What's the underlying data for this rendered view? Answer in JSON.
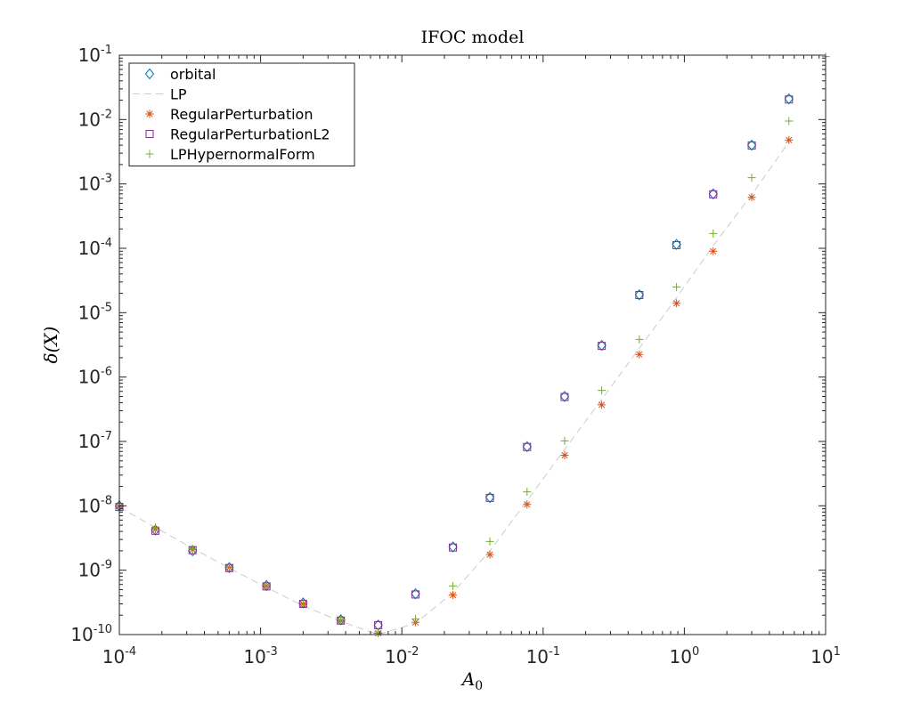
{
  "chart_data": {
    "type": "scatter",
    "title": "IFOC model",
    "xlabel": "A",
    "xlabel_sub": "0",
    "ylabel": "δ(X)",
    "xscale": "log",
    "yscale": "log",
    "xlim": [
      0.0001,
      10
    ],
    "ylim": [
      1e-10,
      0.1
    ],
    "grid": false,
    "legend_position": "top-left",
    "x_ticks": [
      {
        "base": "10",
        "exp": "-4"
      },
      {
        "base": "10",
        "exp": "-3"
      },
      {
        "base": "10",
        "exp": "-2"
      },
      {
        "base": "10",
        "exp": "-1"
      },
      {
        "base": "10",
        "exp": "0"
      },
      {
        "base": "10",
        "exp": "1"
      }
    ],
    "y_ticks": [
      {
        "base": "10",
        "exp": "-10"
      },
      {
        "base": "10",
        "exp": "-9"
      },
      {
        "base": "10",
        "exp": "-8"
      },
      {
        "base": "10",
        "exp": "-7"
      },
      {
        "base": "10",
        "exp": "-6"
      },
      {
        "base": "10",
        "exp": "-5"
      },
      {
        "base": "10",
        "exp": "-4"
      },
      {
        "base": "10",
        "exp": "-3"
      },
      {
        "base": "10",
        "exp": "-2"
      },
      {
        "base": "10",
        "exp": "-1"
      }
    ],
    "series": [
      {
        "name": "orbital",
        "marker": "diamond",
        "color": "#0072BD",
        "x": [
          0.0001,
          0.00018,
          0.00033,
          0.0006,
          0.0011,
          0.002,
          0.0037,
          0.0068,
          0.0125,
          0.023,
          0.042,
          0.077,
          0.142,
          0.26,
          0.48,
          0.88,
          1.6,
          3.0,
          5.5
        ],
        "y": [
          1e-08,
          4.2e-09,
          2e-09,
          1.1e-09,
          5.8e-10,
          3.1e-10,
          1.7e-10,
          1.4e-10,
          4.3e-10,
          2.3e-09,
          1.35e-08,
          8.3e-08,
          5e-07,
          3.1e-06,
          1.9e-05,
          0.000115,
          0.0007,
          0.004,
          0.021
        ]
      },
      {
        "name": "LP",
        "marker": "dashed-line",
        "color": "#cccccc",
        "x": [
          0.0001,
          0.00018,
          0.00033,
          0.0006,
          0.0011,
          0.002,
          0.0037,
          0.0068,
          0.0125,
          0.023,
          0.042,
          0.077,
          0.142,
          0.26,
          0.48,
          0.88,
          1.6,
          3.0,
          5.5
        ],
        "y": [
          9.5e-09,
          4.6e-09,
          2.2e-09,
          1.08e-09,
          5.4e-10,
          2.8e-10,
          1.6e-10,
          1e-10,
          1.5e-10,
          4.5e-10,
          2e-09,
          1.2e-08,
          7.5e-08,
          4.5e-07,
          2.8e-06,
          1.7e-05,
          0.00011,
          0.00068,
          0.0045
        ]
      },
      {
        "name": "RegularPerturbation",
        "marker": "asterisk",
        "color": "#D95319",
        "x": [
          0.0001,
          0.00018,
          0.00033,
          0.0006,
          0.0011,
          0.002,
          0.0037,
          0.0068,
          0.0125,
          0.023,
          0.042,
          0.077,
          0.142,
          0.26,
          0.48,
          0.88,
          1.6,
          3.0,
          5.5
        ],
        "y": [
          9.8e-09,
          4.3e-09,
          2.1e-09,
          1.1e-09,
          5.7e-10,
          3e-10,
          1.65e-10,
          1.05e-10,
          1.55e-10,
          4.1e-10,
          1.75e-09,
          1.05e-08,
          6.1e-08,
          3.7e-07,
          2.25e-06,
          1.4e-05,
          9e-05,
          0.00062,
          0.0048
        ]
      },
      {
        "name": "RegularPerturbationL2",
        "marker": "square",
        "color": "#7E2F8E",
        "x": [
          0.0001,
          0.00018,
          0.00033,
          0.0006,
          0.0011,
          0.002,
          0.0037,
          0.0068,
          0.0125,
          0.023,
          0.042,
          0.077,
          0.142,
          0.26,
          0.48,
          0.88,
          1.6,
          3.0,
          5.5
        ],
        "y": [
          9.6e-09,
          4.1e-09,
          2.05e-09,
          1.08e-09,
          5.6e-10,
          3e-10,
          1.65e-10,
          1.4e-10,
          4.2e-10,
          2.25e-09,
          1.33e-08,
          8.2e-08,
          4.9e-07,
          3.05e-06,
          1.88e-05,
          0.000112,
          0.00069,
          0.00395,
          0.0205
        ]
      },
      {
        "name": "LPHypernormalForm",
        "marker": "plus",
        "color": "#77AC30",
        "x": [
          0.0001,
          0.00018,
          0.00033,
          0.0006,
          0.0011,
          0.002,
          0.0037,
          0.0068,
          0.0125,
          0.023,
          0.042,
          0.077,
          0.142,
          0.26,
          0.48,
          0.88,
          1.6,
          3.0,
          5.5,
          10
        ],
        "y": [
          1.02e-08,
          4.6e-09,
          2.15e-09,
          1.12e-09,
          5.9e-10,
          3.1e-10,
          1.7e-10,
          1.1e-10,
          1.75e-10,
          5.7e-10,
          2.8e-09,
          1.65e-08,
          1.02e-07,
          6.2e-07,
          3.85e-06,
          2.5e-05,
          0.00017,
          0.00125,
          0.0095,
          0.095
        ]
      }
    ]
  }
}
